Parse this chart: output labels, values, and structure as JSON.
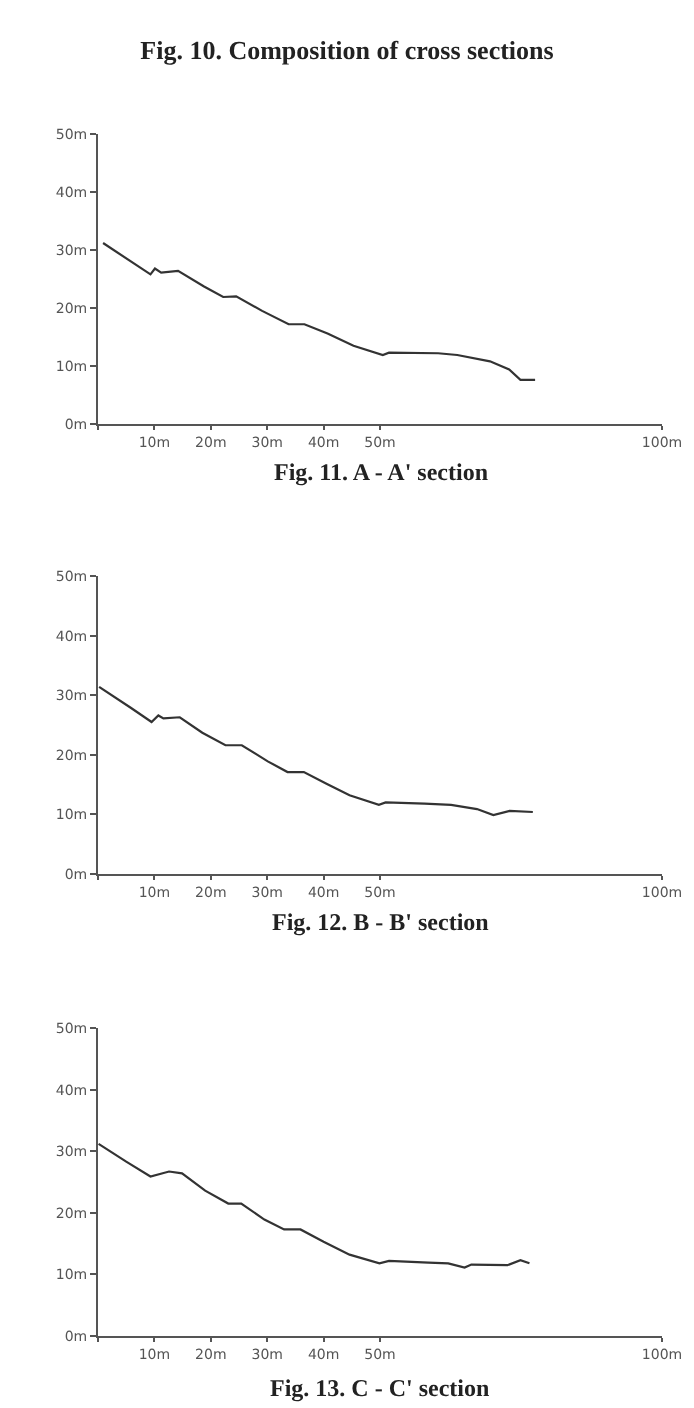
{
  "chart_data": [
    {
      "type": "line",
      "title": "Fig. 10. Composition of cross sections",
      "annotations": [
        "Fig. 11. A - A' section"
      ],
      "color": "#333333",
      "marker": "none",
      "line_style": "solid",
      "x": [
        0.9,
        9.3,
        10.1,
        11.2,
        14.2,
        18.8,
        22.2,
        24.5,
        29.1,
        33.8,
        36.6,
        40.7,
        45.3,
        50.5,
        51.6,
        60.3,
        63.7,
        69.5,
        72.9,
        74.9,
        77.5
      ],
      "values": [
        31.2,
        25.8,
        26.8,
        26.1,
        26.4,
        23.7,
        21.9,
        22.0,
        19.5,
        17.2,
        17.2,
        15.6,
        13.5,
        11.9,
        12.3,
        12.2,
        11.9,
        10.8,
        9.4,
        7.6,
        7.6
      ],
      "xlim": [
        0,
        100
      ],
      "xticks": [
        {
          "value": 0,
          "label": null
        },
        {
          "value": 10,
          "label": "10m"
        },
        {
          "value": 20,
          "label": "20m"
        },
        {
          "value": 30,
          "label": "30m"
        },
        {
          "value": 40,
          "label": "40m"
        },
        {
          "value": 50,
          "label": "50m"
        },
        {
          "value": 100,
          "label": "100m"
        }
      ],
      "ylim": [
        0,
        50
      ],
      "yticks": [
        {
          "value": 0,
          "label": "0m"
        },
        {
          "value": 10,
          "label": "10m"
        },
        {
          "value": 20,
          "label": "20m"
        },
        {
          "value": 30,
          "label": "30m"
        },
        {
          "value": 40,
          "label": "40m"
        },
        {
          "value": 50,
          "label": "50m"
        }
      ]
    },
    {
      "type": "line",
      "annotations": [
        "Fig. 12. B - B' section"
      ],
      "color": "#333333",
      "marker": "none",
      "line_style": "solid",
      "x": [
        0.2,
        5.8,
        9.5,
        10.7,
        11.6,
        14.5,
        18.5,
        22.6,
        25.5,
        30.1,
        33.6,
        36.5,
        40.6,
        44.6,
        49.8,
        51.0,
        57.9,
        62.6,
        67.2,
        70.1,
        73.0,
        77.1
      ],
      "values": [
        31.4,
        27.9,
        25.5,
        26.6,
        26.1,
        26.3,
        23.7,
        21.6,
        21.6,
        18.9,
        17.1,
        17.1,
        15.1,
        13.2,
        11.6,
        12.0,
        11.8,
        11.6,
        10.9,
        9.9,
        10.6,
        10.4
      ],
      "xlim": [
        0,
        100
      ],
      "xticks": [
        {
          "value": 0,
          "label": null
        },
        {
          "value": 10,
          "label": "10m"
        },
        {
          "value": 20,
          "label": "20m"
        },
        {
          "value": 30,
          "label": "30m"
        },
        {
          "value": 40,
          "label": "40m"
        },
        {
          "value": 50,
          "label": "50m"
        },
        {
          "value": 100,
          "label": "100m"
        }
      ],
      "ylim": [
        0,
        50
      ],
      "yticks": [
        {
          "value": 0,
          "label": "0m"
        },
        {
          "value": 10,
          "label": "10m"
        },
        {
          "value": 20,
          "label": "20m"
        },
        {
          "value": 30,
          "label": "30m"
        },
        {
          "value": 40,
          "label": "40m"
        },
        {
          "value": 50,
          "label": "50m"
        }
      ]
    },
    {
      "type": "line",
      "annotations": [
        "Fig. 13. C - C' section"
      ],
      "color": "#333333",
      "marker": "none",
      "line_style": "solid",
      "x": [
        0.1,
        5.0,
        9.3,
        12.6,
        14.9,
        19.0,
        23.1,
        25.4,
        29.5,
        33.0,
        35.9,
        40.0,
        44.6,
        49.9,
        51.6,
        58.6,
        62.1,
        65.0,
        66.2,
        72.6,
        74.9,
        76.5
      ],
      "values": [
        31.2,
        28.3,
        25.9,
        26.7,
        26.4,
        23.6,
        21.5,
        21.5,
        18.9,
        17.3,
        17.3,
        15.3,
        13.2,
        11.8,
        12.2,
        11.9,
        11.8,
        11.1,
        11.6,
        11.5,
        12.3,
        11.8
      ],
      "xlim": [
        0,
        100
      ],
      "xticks": [
        {
          "value": 0,
          "label": null
        },
        {
          "value": 10,
          "label": "10m"
        },
        {
          "value": 20,
          "label": "20m"
        },
        {
          "value": 30,
          "label": "30m"
        },
        {
          "value": 40,
          "label": "40m"
        },
        {
          "value": 50,
          "label": "50m"
        },
        {
          "value": 100,
          "label": "100m"
        }
      ],
      "ylim": [
        0,
        50
      ],
      "yticks": [
        {
          "value": 0,
          "label": "0m"
        },
        {
          "value": 10,
          "label": "10m"
        },
        {
          "value": 20,
          "label": "20m"
        },
        {
          "value": 30,
          "label": "30m"
        },
        {
          "value": 40,
          "label": "40m"
        },
        {
          "value": 50,
          "label": "50m"
        }
      ]
    }
  ]
}
